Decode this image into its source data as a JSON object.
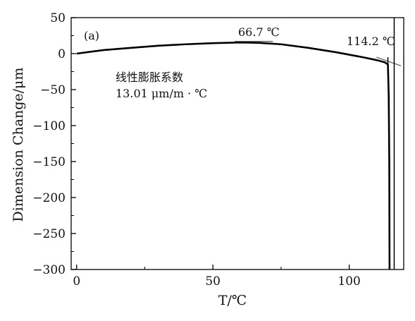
{
  "chart_data": {
    "type": "line",
    "title": "",
    "xlabel": "T/℃",
    "ylabel": "Dimension Change/μm",
    "xlim": [
      -2,
      120
    ],
    "ylim": [
      -300,
      50
    ],
    "grid": false,
    "x_ticks": [
      0,
      50,
      100
    ],
    "y_ticks": [
      50,
      0,
      -50,
      -100,
      -150,
      -200,
      -250,
      -300
    ],
    "series": [
      {
        "values_xy": [
          [
            0,
            0
          ],
          [
            10,
            5
          ],
          [
            20,
            8
          ],
          [
            30,
            11
          ],
          [
            40,
            13
          ],
          [
            50,
            14.5
          ],
          [
            60,
            15.5
          ],
          [
            66.7,
            15
          ],
          [
            75,
            13
          ],
          [
            85,
            8
          ],
          [
            95,
            2
          ],
          [
            105,
            -5
          ],
          [
            110,
            -9
          ],
          [
            113,
            -12
          ],
          [
            114.2,
            -15
          ],
          [
            114.5,
            -60
          ],
          [
            114.7,
            -150
          ],
          [
            114.8,
            -300
          ]
        ],
        "color": "#000000"
      }
    ],
    "tangent_lines": [
      {
        "points": [
          [
            58,
            17
          ],
          [
            72,
            17
          ]
        ]
      },
      {
        "points": [
          [
            110,
            -5
          ],
          [
            119,
            -17
          ]
        ]
      }
    ],
    "vertical_markers": [
      {
        "x": 114.2,
        "y_range": [
          -5,
          -20
        ]
      },
      {
        "x": 116.5,
        "y_range": [
          -300,
          50
        ]
      }
    ],
    "annotations": {
      "panel_label": "(a)",
      "peak_label": "66.7 ℃",
      "end_label": "114.2 ℃",
      "cte_title": "线性膨胀系数",
      "cte_value": "13.01 μm/m · ℃"
    }
  }
}
